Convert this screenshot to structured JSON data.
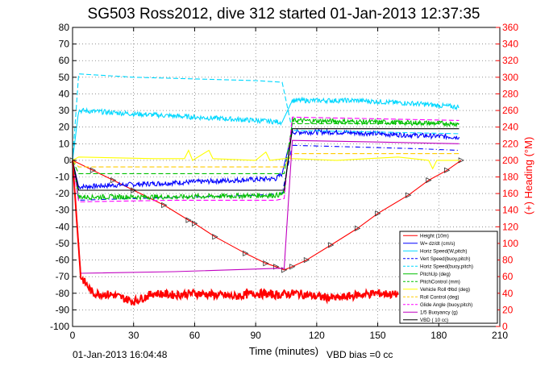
{
  "chart_data": {
    "type": "line",
    "title": "SG503 Ross2012, dive 312 started 01-Jan-2013 12:37:35",
    "xlabel": "Time (minutes)",
    "ylabel_right": "(+) Heading (°M)",
    "xlim": [
      0,
      210
    ],
    "ylim_left": [
      -100,
      80
    ],
    "ylim_right": [
      0,
      360
    ],
    "x_ticks": [
      0,
      30,
      60,
      90,
      120,
      150,
      180,
      210
    ],
    "y_ticks_left": [
      -100,
      -90,
      -80,
      -70,
      -60,
      -50,
      -40,
      -30,
      -20,
      -10,
      0,
      10,
      20,
      30,
      40,
      50,
      60,
      70,
      80
    ],
    "y_ticks_right": [
      0,
      20,
      40,
      60,
      80,
      100,
      120,
      140,
      160,
      180,
      200,
      220,
      240,
      260,
      280,
      300,
      320,
      340,
      360
    ],
    "grid": true,
    "legend_position": "lower-right",
    "footer_left": "01-Jan-2013 16:04:48",
    "footer_right": "VBD bias =0 cc",
    "series": [
      {
        "name": "Height (10m)",
        "color": "#ff0000",
        "style": "solid",
        "markers": true,
        "points": [
          [
            0,
            0
          ],
          [
            10,
            -6
          ],
          [
            20,
            -12
          ],
          [
            30,
            -18
          ],
          [
            45,
            -27
          ],
          [
            57,
            -36
          ],
          [
            60,
            -38
          ],
          [
            70,
            -46
          ],
          [
            85,
            -56
          ],
          [
            95,
            -62
          ],
          [
            100,
            -64
          ],
          [
            104,
            -66
          ],
          [
            108,
            -64
          ],
          [
            115,
            -60
          ],
          [
            127,
            -51
          ],
          [
            140,
            -41
          ],
          [
            150,
            -32
          ],
          [
            165,
            -21
          ],
          [
            175,
            -12
          ],
          [
            184,
            -6
          ],
          [
            191,
            0
          ]
        ]
      },
      {
        "name": "W= dz/dt (cm/s)",
        "color": "#0000ff",
        "style": "solid",
        "noisy": true,
        "points": [
          [
            0,
            0
          ],
          [
            3,
            -16
          ],
          [
            20,
            -15
          ],
          [
            40,
            -14
          ],
          [
            60,
            -13
          ],
          [
            80,
            -12
          ],
          [
            100,
            -11
          ],
          [
            103,
            -8
          ],
          [
            108,
            17
          ],
          [
            130,
            17
          ],
          [
            150,
            16
          ],
          [
            170,
            15
          ],
          [
            190,
            14
          ]
        ]
      },
      {
        "name": "Horiz Speed(W,pitch)",
        "color": "#00d8ff",
        "style": "solid",
        "noisy": true,
        "points": [
          [
            0,
            0
          ],
          [
            3,
            30
          ],
          [
            30,
            28
          ],
          [
            60,
            26
          ],
          [
            90,
            24
          ],
          [
            103,
            23
          ],
          [
            108,
            36
          ],
          [
            140,
            36
          ],
          [
            170,
            34
          ],
          [
            190,
            32
          ]
        ]
      },
      {
        "name": "Vert Speed(buoy,pitch)",
        "color": "#0000ff",
        "style": "dashdot",
        "points": [
          [
            0,
            0
          ],
          [
            3,
            -24
          ],
          [
            30,
            -23
          ],
          [
            60,
            -22
          ],
          [
            90,
            -21
          ],
          [
            103,
            -20
          ],
          [
            108,
            9
          ],
          [
            140,
            8
          ],
          [
            170,
            7
          ],
          [
            190,
            6
          ]
        ]
      },
      {
        "name": "Horiz Speed(buoy,pitch)",
        "color": "#00d8ff",
        "style": "dashed",
        "points": [
          [
            0,
            0
          ],
          [
            3,
            52
          ],
          [
            30,
            50
          ],
          [
            60,
            49
          ],
          [
            90,
            48
          ],
          [
            103,
            47
          ],
          [
            108,
            18
          ],
          [
            150,
            17
          ],
          [
            190,
            16
          ]
        ]
      },
      {
        "name": "PitchUp (deg)",
        "color": "#00c000",
        "style": "solid",
        "noisy": true,
        "points": [
          [
            0,
            0
          ],
          [
            3,
            -22
          ],
          [
            50,
            -22
          ],
          [
            100,
            -21
          ],
          [
            104,
            -20
          ],
          [
            108,
            24
          ],
          [
            150,
            23
          ],
          [
            190,
            22
          ]
        ]
      },
      {
        "name": "PitchControl (mm)",
        "color": "#00c000",
        "style": "dashed",
        "points": [
          [
            0,
            0
          ],
          [
            3,
            -8
          ],
          [
            100,
            -8
          ],
          [
            104,
            -8
          ],
          [
            108,
            22
          ],
          [
            190,
            22
          ]
        ]
      },
      {
        "name": "Vehicle Roll Φbd (deg)",
        "color": "#ffff00",
        "style": "solid",
        "points": [
          [
            0,
            0
          ],
          [
            3,
            2
          ],
          [
            40,
            1
          ],
          [
            55,
            1
          ],
          [
            57,
            6
          ],
          [
            59,
            0
          ],
          [
            67,
            6
          ],
          [
            69,
            1
          ],
          [
            90,
            0
          ],
          [
            95,
            5
          ],
          [
            97,
            0
          ],
          [
            104,
            1
          ],
          [
            108,
            1
          ],
          [
            130,
            0
          ],
          [
            145,
            1
          ],
          [
            160,
            2
          ],
          [
            175,
            0
          ],
          [
            177,
            -5
          ],
          [
            179,
            0
          ],
          [
            190,
            0
          ]
        ]
      },
      {
        "name": "Roll Control (deg)",
        "color": "#ffcc00",
        "style": "dashed",
        "points": [
          [
            0,
            0
          ],
          [
            3,
            -4
          ],
          [
            50,
            -4
          ],
          [
            100,
            -4
          ],
          [
            104,
            -4
          ],
          [
            108,
            4
          ],
          [
            190,
            4
          ]
        ]
      },
      {
        "name": "Glide Angle (buoy,pitch)",
        "color": "#ff00ff",
        "style": "dashed",
        "points": [
          [
            0,
            0
          ],
          [
            3,
            -25
          ],
          [
            50,
            -24
          ],
          [
            100,
            -24
          ],
          [
            104,
            -23
          ],
          [
            108,
            26
          ],
          [
            150,
            25
          ],
          [
            190,
            24
          ]
        ]
      },
      {
        "name": "1/5 Buoyancy (g)",
        "color": "#c000c0",
        "style": "solid",
        "points": [
          [
            0,
            0
          ],
          [
            4,
            -68
          ],
          [
            50,
            -67
          ],
          [
            100,
            -65
          ],
          [
            104,
            -65
          ],
          [
            108,
            12
          ],
          [
            150,
            11
          ],
          [
            190,
            10
          ]
        ]
      },
      {
        "name": "VBD ( 10 cc)",
        "color": "#000000",
        "style": "solid",
        "points": [
          [
            0,
            0
          ],
          [
            3,
            -18
          ],
          [
            50,
            -18
          ],
          [
            100,
            -18
          ],
          [
            104,
            -18
          ],
          [
            108,
            19
          ],
          [
            150,
            19
          ],
          [
            190,
            19
          ]
        ]
      },
      {
        "name": "Heading",
        "color": "#ff0000",
        "style": "solid",
        "noisy": true,
        "axis": "right",
        "points": [
          [
            0,
            200
          ],
          [
            4,
            60
          ],
          [
            10,
            40
          ],
          [
            20,
            38
          ],
          [
            30,
            30
          ],
          [
            40,
            40
          ],
          [
            50,
            38
          ],
          [
            60,
            40
          ],
          [
            70,
            38
          ],
          [
            80,
            36
          ],
          [
            90,
            40
          ],
          [
            100,
            38
          ],
          [
            110,
            40
          ],
          [
            120,
            36
          ],
          [
            130,
            34
          ],
          [
            140,
            38
          ],
          [
            150,
            40
          ],
          [
            160,
            38
          ]
        ]
      }
    ]
  }
}
